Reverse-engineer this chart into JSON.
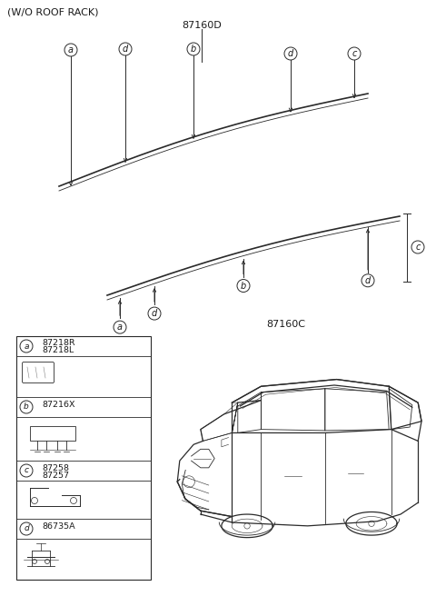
{
  "title": "(W/O ROOF RACK)",
  "bg_color": "#ffffff",
  "line_color": "#2a2a2a",
  "text_color": "#1a1a1a",
  "part_label_top": "87160D",
  "part_label_bot": "87160C",
  "legend": [
    {
      "letter": "a",
      "part1": "87218R",
      "part2": "87218L"
    },
    {
      "letter": "b",
      "part1": "87216X",
      "part2": ""
    },
    {
      "letter": "c",
      "part1": "87258",
      "part2": "87257"
    },
    {
      "letter": "d",
      "part1": "86735A",
      "part2": ""
    }
  ],
  "figsize": [
    4.8,
    6.56
  ],
  "dpi": 100
}
